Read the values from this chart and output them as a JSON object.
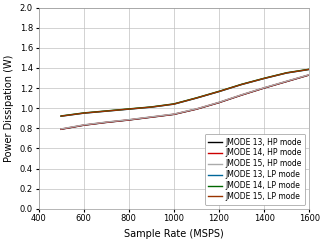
{
  "title": "",
  "xlabel": "Sample Rate (MSPS)",
  "ylabel": "Power Dissipation (W)",
  "xlim": [
    400,
    1600
  ],
  "ylim": [
    0,
    2
  ],
  "xticks": [
    400,
    600,
    800,
    1000,
    1200,
    1400,
    1600
  ],
  "yticks": [
    0,
    0.2,
    0.4,
    0.6,
    0.8,
    1.0,
    1.2,
    1.4,
    1.6,
    1.8,
    2.0
  ],
  "series": [
    {
      "label": "JMODE 13, HP mode",
      "color": "#000000",
      "linestyle": "-",
      "x": [
        500,
        600,
        700,
        800,
        900,
        1000,
        1100,
        1200,
        1300,
        1400,
        1500,
        1600
      ],
      "y": [
        0.79,
        0.83,
        0.858,
        0.882,
        0.91,
        0.938,
        0.99,
        1.055,
        1.13,
        1.2,
        1.265,
        1.33
      ]
    },
    {
      "label": "JMODE 14, HP mode",
      "color": "#cc0000",
      "linestyle": "-",
      "x": [
        500,
        600,
        700,
        800,
        900,
        1000,
        1100,
        1200,
        1300,
        1400,
        1500,
        1600
      ],
      "y": [
        0.792,
        0.832,
        0.86,
        0.884,
        0.912,
        0.94,
        0.992,
        1.057,
        1.132,
        1.202,
        1.267,
        1.332
      ]
    },
    {
      "label": "JMODE 15, HP mode",
      "color": "#aaaaaa",
      "linestyle": "-",
      "x": [
        500,
        600,
        700,
        800,
        900,
        1000,
        1100,
        1200,
        1300,
        1400,
        1500,
        1600
      ],
      "y": [
        0.794,
        0.834,
        0.862,
        0.886,
        0.914,
        0.942,
        0.994,
        1.059,
        1.134,
        1.204,
        1.269,
        1.334
      ]
    },
    {
      "label": "JMODE 13, LP mode",
      "color": "#006699",
      "linestyle": "-",
      "x": [
        500,
        600,
        700,
        800,
        900,
        1000,
        1100,
        1200,
        1300,
        1400,
        1500,
        1600
      ],
      "y": [
        0.92,
        0.95,
        0.97,
        0.99,
        1.01,
        1.04,
        1.1,
        1.165,
        1.235,
        1.295,
        1.35,
        1.385
      ]
    },
    {
      "label": "JMODE 14, LP mode",
      "color": "#006600",
      "linestyle": "-",
      "x": [
        500,
        600,
        700,
        800,
        900,
        1000,
        1100,
        1200,
        1300,
        1400,
        1500,
        1600
      ],
      "y": [
        0.923,
        0.953,
        0.973,
        0.993,
        1.013,
        1.043,
        1.103,
        1.168,
        1.238,
        1.298,
        1.353,
        1.388
      ]
    },
    {
      "label": "JMODE 15, LP mode",
      "color": "#993300",
      "linestyle": "-",
      "x": [
        500,
        600,
        700,
        800,
        900,
        1000,
        1100,
        1200,
        1300,
        1400,
        1500,
        1600
      ],
      "y": [
        0.921,
        0.951,
        0.971,
        0.991,
        1.011,
        1.041,
        1.101,
        1.166,
        1.236,
        1.296,
        1.351,
        1.386
      ]
    }
  ],
  "legend_fontsize": 5.5,
  "axis_label_fontsize": 7,
  "tick_fontsize": 6,
  "linewidth": 1.0,
  "background_color": "#ffffff",
  "grid_color": "#c0c0c0",
  "legend_loc": "lower right"
}
